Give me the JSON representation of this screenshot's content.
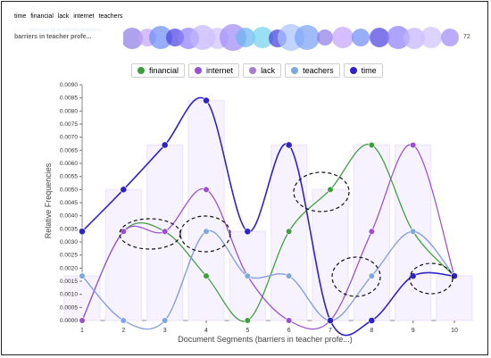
{
  "terms_bar": [
    {
      "label": "time",
      "color": "#3b32c7"
    },
    {
      "label": "financial",
      "color": "#34b634"
    },
    {
      "label": "lack",
      "color": "#9b44d5"
    },
    {
      "label": "internet",
      "color": "#2ca6e8"
    },
    {
      "label": "teachers",
      "color": "#57d6ef"
    }
  ],
  "document_row": {
    "label": "barriers in teacher profe...",
    "count": "72",
    "ghost_labels": [
      "financial",
      "lack",
      "internet",
      "teachers"
    ]
  },
  "bubbles": [
    {
      "color": "#8f7de8",
      "size": 1
    },
    {
      "color": "#c4a5ff",
      "size": 1
    },
    {
      "color": "#6f8ff5",
      "size": 1
    },
    {
      "color": "#4f44e0",
      "size": 1
    },
    {
      "color": "#8f80ff",
      "size": 1
    },
    {
      "color": "#c3b5ff",
      "size": 1
    },
    {
      "color": "#d0c2ff",
      "size": 1
    },
    {
      "color": "#a18cf6",
      "size": 1
    },
    {
      "color": "#6db4f0",
      "size": 1
    },
    {
      "color": "#74d3f1",
      "size": 1
    },
    {
      "color": "#4440db",
      "size": 1
    },
    {
      "color": "#a9c2ff",
      "size": 1
    },
    {
      "color": "#7aa2f6",
      "size": 1
    }
  ],
  "chart_data": {
    "type": "line",
    "title": "",
    "xlabel": "Document Segments (barriers in teacher profe...)",
    "ylabel": "Relative Frequencies",
    "x": [
      1,
      2,
      3,
      4,
      5,
      6,
      7,
      8,
      9,
      10
    ],
    "ylim": [
      0,
      0.009
    ],
    "yticks": [
      0,
      0.0005,
      0.001,
      0.0015,
      0.002,
      0.0025,
      0.003,
      0.0035,
      0.004,
      0.0045,
      0.005,
      0.0055,
      0.006,
      0.0065,
      0.007,
      0.0075,
      0.008,
      0.0085,
      0.009
    ],
    "legend_placement": "top-center",
    "bars": [
      0.0017,
      0.005,
      0.0067,
      0.0084,
      0.0034,
      0.0067,
      0.005,
      0.0067,
      0.0067,
      0.0017
    ],
    "series": [
      {
        "name": "financial",
        "color": "#3d9e3d",
        "values": [
          0,
          0.0034,
          0.0034,
          0.0017,
          0,
          0.0034,
          0.005,
          0.0067,
          0.0034,
          0.0017
        ]
      },
      {
        "name": "internet",
        "color": "#9b4fd0",
        "values": [
          0,
          0.0034,
          0.0034,
          0.005,
          0.0017,
          0,
          0,
          0.0034,
          0.0067,
          0.0017
        ]
      },
      {
        "name": "lack",
        "color": "#a77dd8",
        "values": [
          0.0017,
          0,
          0,
          0.0034,
          0.0017,
          0.0017,
          0,
          0.0017,
          0.0034,
          0.0017
        ]
      },
      {
        "name": "teachers",
        "color": "#7da7df",
        "values": [
          0.0017,
          0,
          0,
          0.0034,
          0.0017,
          0.0017,
          0,
          0.0017,
          0.0034,
          0.0017
        ]
      },
      {
        "name": "time",
        "color": "#2f23c7",
        "values": [
          0.0034,
          0.005,
          0.0067,
          0.0084,
          0.0034,
          0.0067,
          0,
          0,
          0.0017,
          0.0017
        ]
      }
    ]
  }
}
